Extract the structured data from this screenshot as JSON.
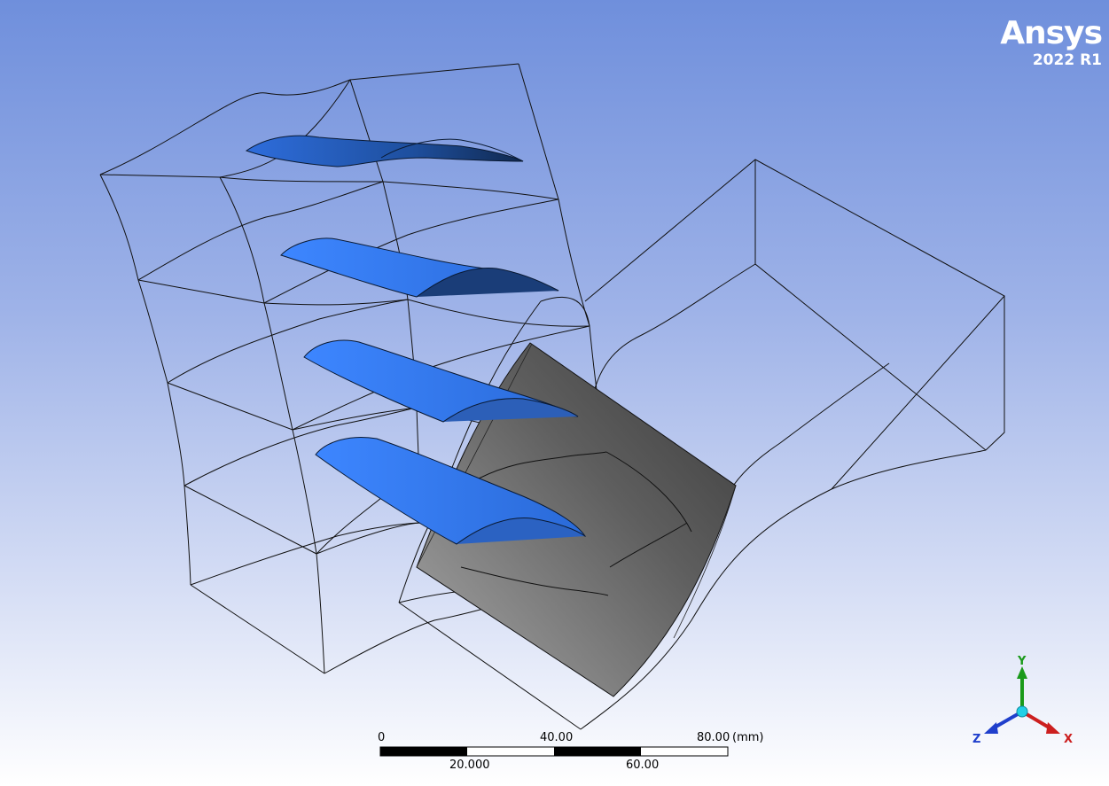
{
  "branding": {
    "product": "Ansys",
    "version": "2022 R1"
  },
  "scale_bar": {
    "top_labels": [
      "0",
      "40.00",
      "80.00"
    ],
    "unit": "(mm)",
    "bottom_labels": [
      "20.000",
      "60.00"
    ]
  },
  "triad": {
    "y_label": "Y",
    "x_label": "X",
    "z_label": "Z",
    "colors": {
      "y": "#1a9a1a",
      "x": "#cc1f1f",
      "z": "#1f3fcc",
      "origin": "#22cfe6"
    }
  },
  "colors": {
    "blade": "#2f78f0",
    "blade_dark": "#153a7a",
    "plane": "#6a6a6a",
    "wire": "#111111"
  },
  "objects": [
    "blade-1",
    "blade-2",
    "blade-3",
    "blade-4",
    "section-plane",
    "fluid-domain-upstream",
    "fluid-domain-downstream"
  ]
}
